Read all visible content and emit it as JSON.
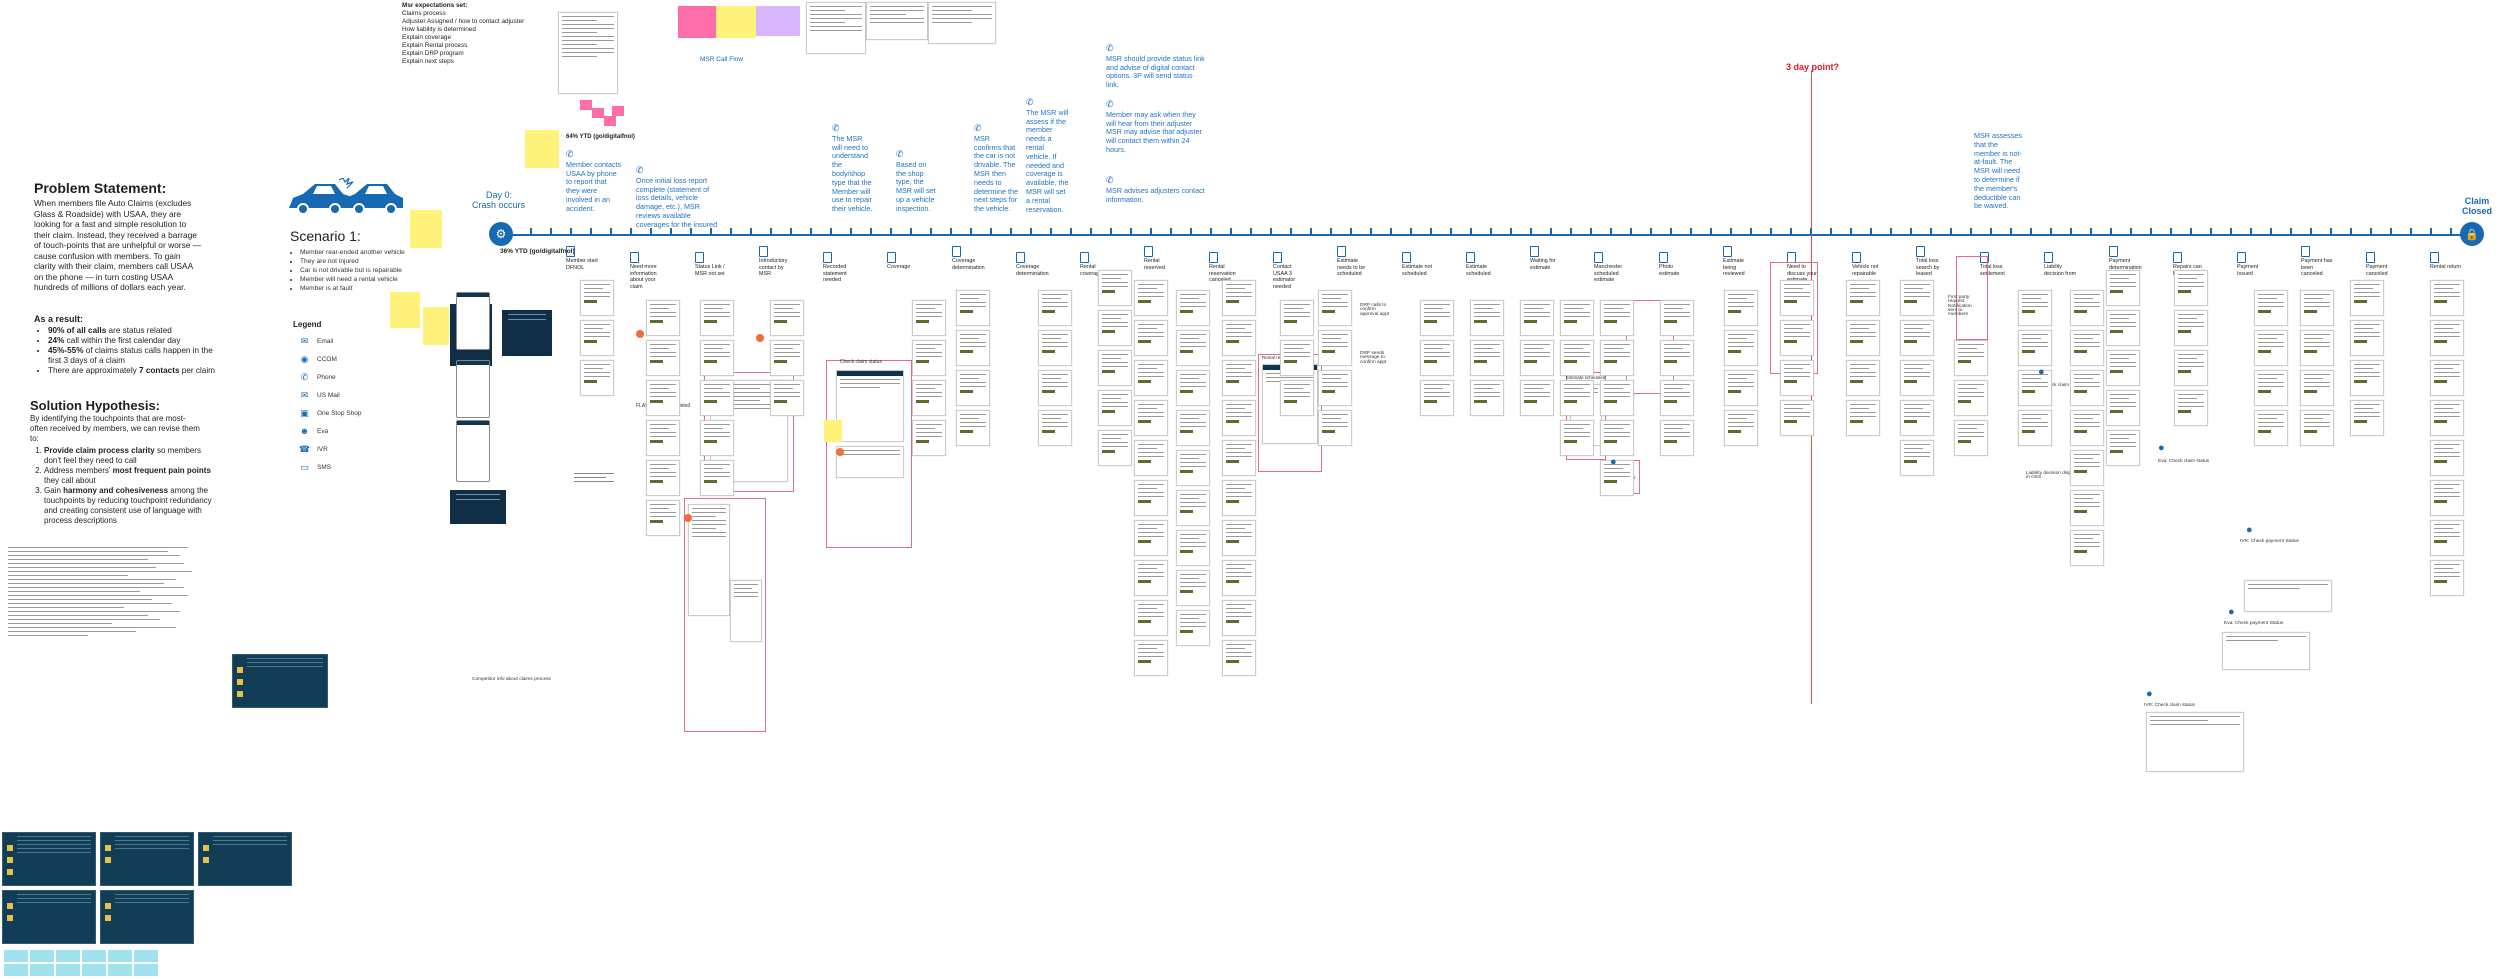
{
  "header": {
    "msr_expectations_title": "Msr expectations set:",
    "msr_expectations": [
      "Claims process",
      "Adjuster Assigned / how to contact adjuster",
      "How liability is determined",
      "Explain coverage",
      "Explain Rental process",
      "Explain DRP program",
      "Explain next steps"
    ],
    "msr_call_flow": "MSR Call Flow"
  },
  "left_panel": {
    "problem_title": "Problem Statement:",
    "problem_body": "When members file Auto Claims (excludes Glass & Roadside) with USAA, they are looking for a fast and simple resolution to their claim. Instead, they received a barrage of touch-points that are unhelpful or worse — cause confusion with members. To gain clarity with their claim, members call USAA on the phone — in turn costing USAA hundreds of millions of dollars each year.",
    "result_title": "As a result:",
    "results": [
      [
        "90% of all calls",
        " are status related"
      ],
      [
        "24%",
        " call within the first calendar day"
      ],
      [
        "45%-55%",
        " of claims status calls happen in the first 3 days of a claim"
      ],
      [
        "",
        "There are approximately "
      ],
      [
        "7 contacts",
        " per claim"
      ]
    ],
    "hyp_title": "Solution Hypothesis:",
    "hyp_body": "By identifying the touchpoints that are most-often received by members, we can revise them to:",
    "hypotheses": [
      [
        "Provide claim process clarity",
        " so members don't feel they need to call"
      ],
      [
        "Address members' ",
        "most frequent pain points",
        " they call about"
      ],
      [
        "Gain ",
        "harmony and cohesiveness",
        " among the touchpoints by reducing touchpoint redundancy and creating consistent use of language with process descriptions"
      ]
    ]
  },
  "scenario": {
    "title": "Scenario 1:",
    "items": [
      "Member rear-ended another vehicle",
      "They are not injured",
      "Car is not drivable but is repairable",
      "Member will need a rental vehicle",
      "Member is at fault"
    ]
  },
  "legend": {
    "title": "Legend",
    "items": [
      {
        "label": "Email",
        "icon": "email-icon"
      },
      {
        "label": "CCOM",
        "icon": "ccom-icon"
      },
      {
        "label": "Phone",
        "icon": "phone-icon"
      },
      {
        "label": "US Mail",
        "icon": "mail-icon"
      },
      {
        "label": "One Stop Shop",
        "icon": "shop-icon"
      },
      {
        "label": "Eva",
        "icon": "eva-icon"
      },
      {
        "label": "IVR",
        "icon": "ivr-icon"
      },
      {
        "label": "SMS",
        "icon": "sms-icon"
      }
    ]
  },
  "timeline": {
    "day0": "Day 0:",
    "day0_sub": "Crash occurs",
    "end_label_1": "Claim",
    "end_label_2": "Closed",
    "three_day": "3 day point?",
    "ytd_top": "64% YTD (go/digitalfnol)",
    "ytd_bottom": "36% YTD (go/digitalfnol)"
  },
  "notes": [
    {
      "text": "Member contacts USAA by phone to report that they were involved in an accident."
    },
    {
      "text": "Once initial loss report complete (statement of loss details, vehicle damage, etc.), MSR reviews available coverages for the insured"
    },
    {
      "text": "The MSR will need to understand the body/shop type that the Member will use to repair their vehicle."
    },
    {
      "text": "Based on the shop type, the MSR will set up a vehicle inspection."
    },
    {
      "text": "MSR confirms that the car is not drivable. The MSR then needs to determine the next steps for the vehicle."
    },
    {
      "text": "The MSR will assess if the member needs a rental vehicle. If needed and coverage is available, the MSR will set a rental reservation."
    },
    {
      "text": "MSR should provide status link and advise of digital contact options. 3P will send status link."
    },
    {
      "text": "Member may ask when they will hear from their adjuster MSR may advise that adjuster will contact them within 24 hours."
    },
    {
      "text": "MSR advises adjusters contact information."
    },
    {
      "text": "MSR assesses that the member is not-at-fault. The MSR will need to determine if the member's deductible can be waived."
    }
  ],
  "touchpoints": [
    "Member start DFNOL",
    "Need more information about your claim",
    "Status Link / MSR not set",
    "Introductory contact by MSR",
    "Recorded statement needed",
    "Coverage",
    "Coverage determination",
    "Coverage determination",
    "Rental coverage",
    "Rental reserved",
    "Rental reservation canceled",
    "Contact USAA 3 estimator needed",
    "Estimate needs to be scheduled",
    "Estimate not scheduled",
    "Estimate scheduled",
    "Waiting for estimate",
    "Manchester scheduled estimate",
    "Photo estimate",
    "Estimate being reviewed",
    "Need to discuss your estimate",
    "Vehicle not repairable",
    "Total loss search by leased",
    "Total loss settlement",
    "Liability decision from",
    "Payment determination",
    "Repairs can begin",
    "Payment Issued",
    "Payment has been canceled",
    "Payment canceled",
    "Rental return"
  ],
  "small_labels": {
    "flashback": "FLASHBACK completed",
    "drp": "DRP calls to confirm approval appt",
    "drp2": "DRP sends message to confirm appt",
    "consumer_rights": "Consumer Rights Letter",
    "first_party": "First party request: Notification sent to members",
    "eva_check_liability": "Eva: Check claim liability",
    "liability_displayed": "Liability decision displayed in OSS",
    "eva_check_claim_status": "Eva: Check claim status",
    "ivr_payment": "IVR: Check payment Status",
    "eva_payment": "Eva: Check payment Status",
    "ivr_claim": "IVR: Check claim status",
    "competitor": "Competitor info about claims process",
    "check_claim_status": "Check claim status",
    "rental_reserved": "Rental reserved",
    "estimate_scheduled": "Estimate scheduled"
  },
  "colors": {
    "brand_blue": "#1869b4",
    "alert_red": "#e0192b",
    "sticky_yellow": "#fff27a",
    "dark_card": "#102e46"
  }
}
